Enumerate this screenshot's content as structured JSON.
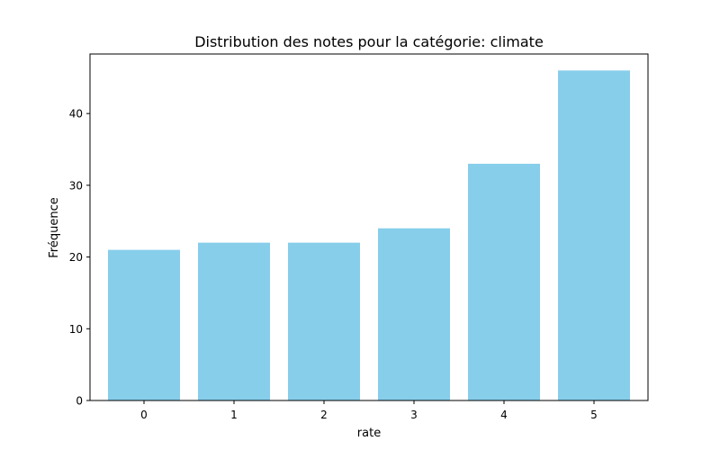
{
  "chart_data": {
    "type": "bar",
    "title": "Distribution des notes pour la catégorie: climate",
    "xlabel": "rate",
    "ylabel": "Fréquence",
    "categories": [
      "0",
      "1",
      "2",
      "3",
      "4",
      "5"
    ],
    "values": [
      21,
      22,
      22,
      24,
      33,
      46
    ],
    "ylim": [
      0,
      48.3
    ],
    "yticks": [
      0,
      10,
      20,
      30,
      40
    ],
    "bar_color": "#87ceeb",
    "grid": false,
    "legend": "none"
  }
}
